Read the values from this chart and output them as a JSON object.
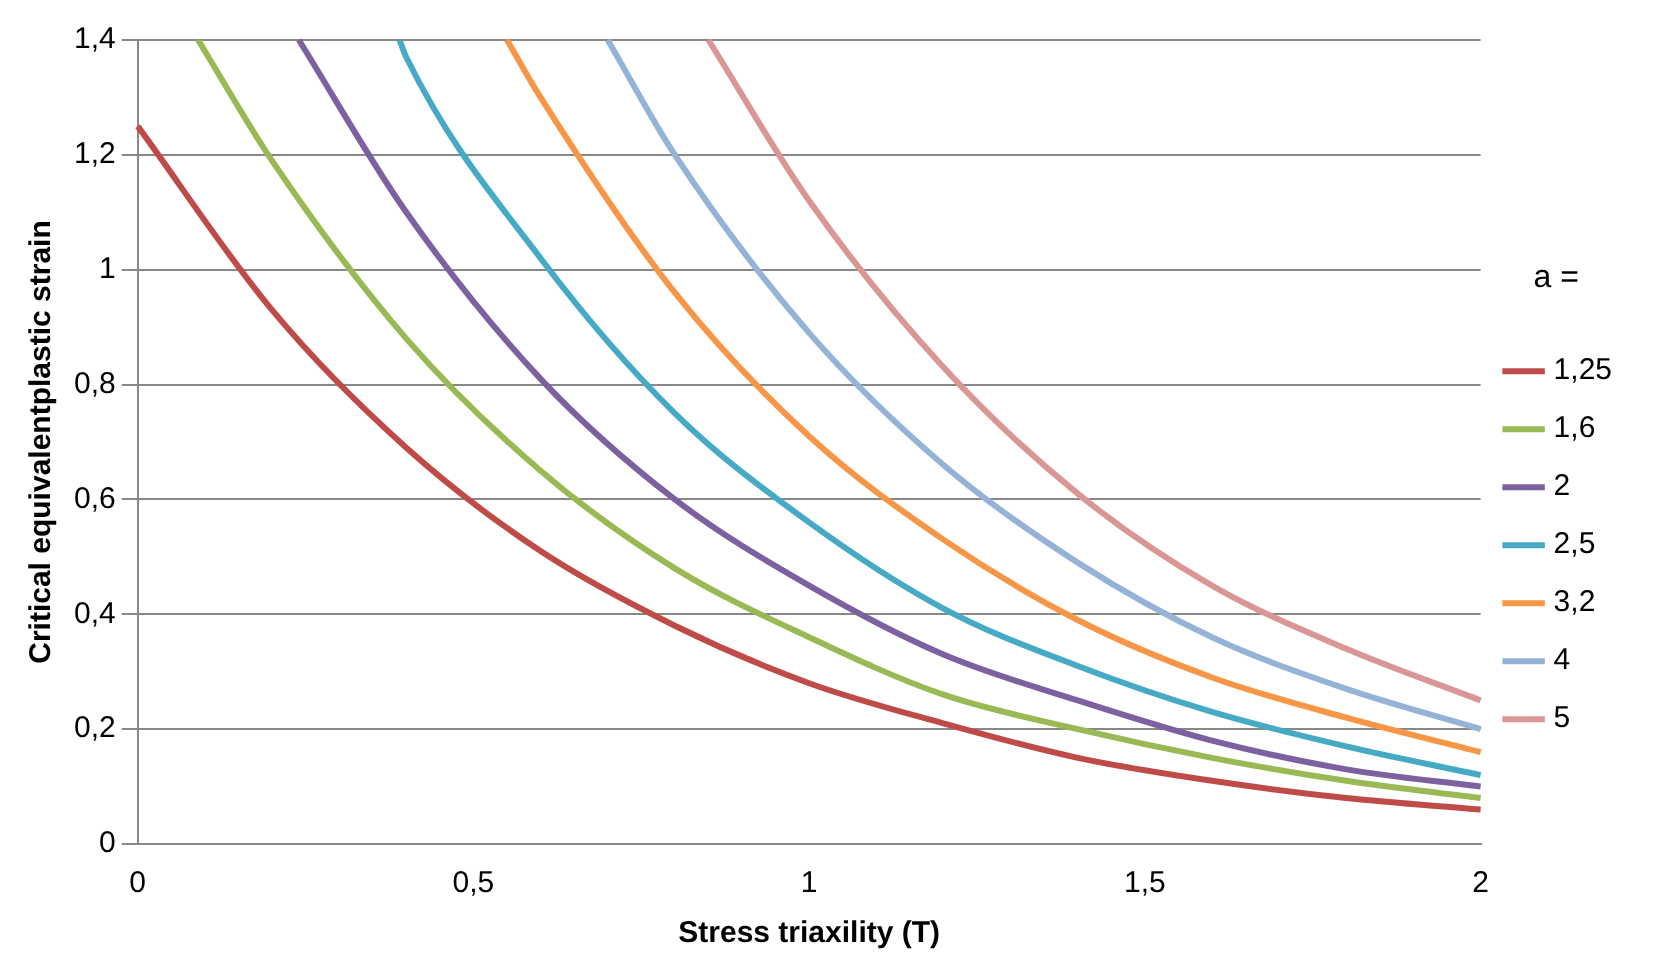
{
  "chart_data": {
    "type": "line",
    "xlabel": "Stress triaxility (T)",
    "ylabel": "Critical equivalentplastic strain",
    "legend_title": "a =",
    "legend": "right",
    "grid": "y",
    "marker": "none",
    "line_style": "solid",
    "xlim": [
      0,
      2
    ],
    "xticks": [
      0,
      {
        "value": 0.5,
        "label": "0,5"
      },
      1,
      {
        "value": 1.5,
        "label": "1,5"
      },
      2
    ],
    "ylim": [
      0,
      1.4
    ],
    "yticks": [
      0,
      {
        "value": 0.2,
        "label": "0,2"
      },
      {
        "value": 0.4,
        "label": "0,4"
      },
      {
        "value": 0.6,
        "label": "0,6"
      },
      {
        "value": 0.8,
        "label": "0,8"
      },
      1,
      {
        "value": 1.2,
        "label": "1,2"
      },
      {
        "value": 1.4,
        "label": "1,4"
      }
    ],
    "series": [
      {
        "name": "1,25",
        "color": "#be4b48",
        "x": [
          0,
          0.2,
          0.4,
          0.6,
          0.8,
          1,
          1.2,
          1.4,
          1.6,
          1.8,
          2
        ],
        "values": [
          1.25,
          0.93,
          0.69,
          0.51,
          0.38,
          0.28,
          0.21,
          0.15,
          0.11,
          0.08,
          0.06
        ]
      },
      {
        "name": "1,6",
        "color": "#98b954",
        "x": [
          0.09,
          0.2,
          0.4,
          0.6,
          0.8,
          1,
          1.2,
          1.4,
          1.6,
          1.8,
          2
        ],
        "values": [
          1.4,
          1.19,
          0.88,
          0.65,
          0.48,
          0.36,
          0.26,
          0.2,
          0.15,
          0.11,
          0.08
        ]
      },
      {
        "name": "2",
        "color": "#7d60a0",
        "x": [
          0.24,
          0.4,
          0.6,
          0.8,
          1,
          1.2,
          1.4,
          1.6,
          1.8,
          2
        ],
        "values": [
          1.4,
          1.1,
          0.81,
          0.6,
          0.45,
          0.33,
          0.25,
          0.18,
          0.13,
          0.1
        ]
      },
      {
        "name": "2,5",
        "color": "#46aac5",
        "x": [
          0.39,
          0.4,
          0.6,
          0.8,
          1,
          1.2,
          1.4,
          1.6,
          1.8,
          2
        ],
        "values": [
          1.4,
          1.37,
          1.02,
          0.75,
          0.56,
          0.41,
          0.31,
          0.23,
          0.17,
          0.12
        ]
      },
      {
        "name": "3,2",
        "color": "#f79646",
        "x": [
          0.55,
          0.6,
          0.8,
          1,
          1.2,
          1.4,
          1.6,
          1.8,
          2
        ],
        "values": [
          1.4,
          1.3,
          0.96,
          0.71,
          0.53,
          0.39,
          0.29,
          0.22,
          0.16
        ]
      },
      {
        "name": "4",
        "color": "#95b3d7",
        "x": [
          0.7,
          0.8,
          1,
          1.2,
          1.4,
          1.6,
          1.8,
          2
        ],
        "values": [
          1.4,
          1.2,
          0.89,
          0.66,
          0.49,
          0.36,
          0.27,
          0.2
        ]
      },
      {
        "name": "5",
        "color": "#d99694",
        "x": [
          0.85,
          1,
          1.2,
          1.4,
          1.6,
          1.8,
          2
        ],
        "values": [
          1.4,
          1.12,
          0.83,
          0.61,
          0.45,
          0.34,
          0.25
        ]
      }
    ]
  }
}
